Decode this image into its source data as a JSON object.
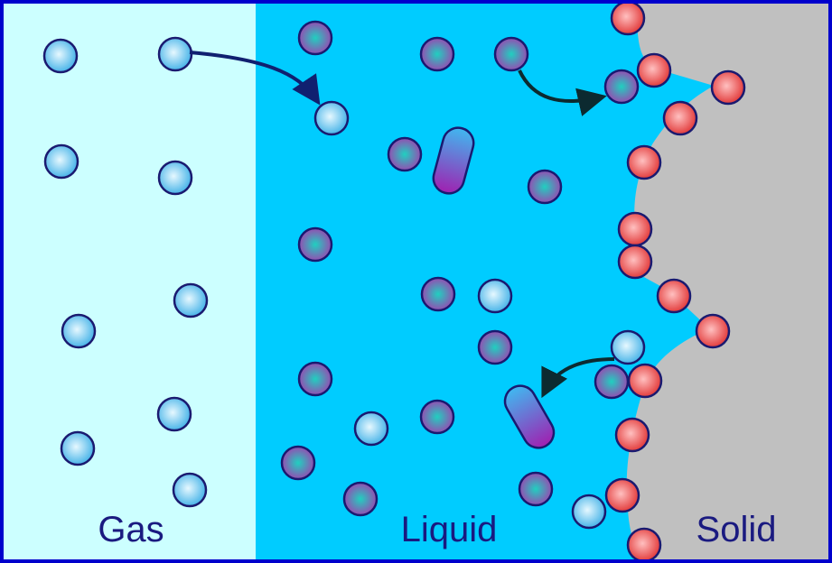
{
  "labels": {
    "gas": "Gas",
    "liquid": "Liquid",
    "solid": "Solid"
  }
}
